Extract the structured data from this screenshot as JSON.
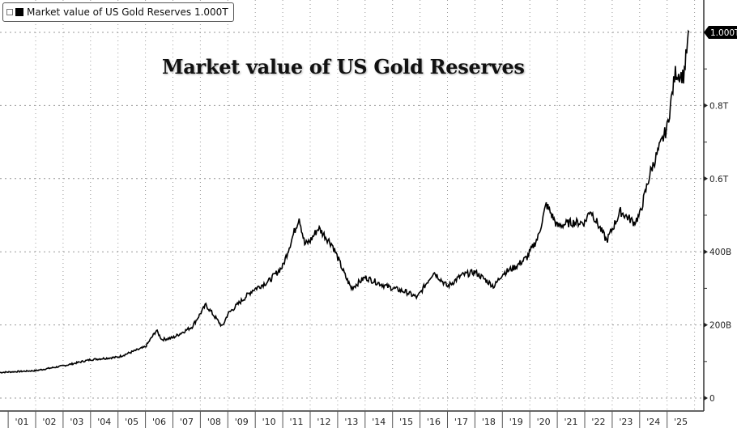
{
  "legend": {
    "label": "Market value of US Gold Reserves 1.000T"
  },
  "chart_data": {
    "type": "line",
    "title": "Market value of US Gold Reserves",
    "xlabel": "",
    "ylabel": "",
    "ylim": [
      0,
      1080
    ],
    "y_ticks": [
      {
        "value": 0,
        "label": "0"
      },
      {
        "value": 200,
        "label": "200B"
      },
      {
        "value": 400,
        "label": "400B"
      },
      {
        "value": 600,
        "label": "0.6T"
      },
      {
        "value": 800,
        "label": "0.8T"
      }
    ],
    "last_value_label": "1.000T",
    "x_tick_labels": [
      "'01",
      "'02",
      "'03",
      "'04",
      "'05",
      "'06",
      "'07",
      "'08",
      "'09",
      "'10",
      "'11",
      "'12",
      "'13",
      "'14",
      "'15",
      "'16",
      "'17",
      "'18",
      "'19",
      "'20",
      "'21",
      "'22",
      "'23",
      "'24",
      "'25"
    ],
    "grid": true,
    "y_axis_side": "right",
    "series": [
      {
        "color": "#000000",
        "x": [
          2000.7,
          2002,
          2003,
          2004,
          2005,
          2006,
          2006.4,
          2006.6,
          2007,
          2007.7,
          2008.2,
          2008.8,
          2009,
          2009.9,
          2010.5,
          2011,
          2011.6,
          2011.8,
          2012,
          2012.3,
          2012.8,
          2013.3,
          2013.5,
          2014,
          2014.8,
          2015.5,
          2015.9,
          2016.5,
          2017,
          2017.5,
          2018,
          2018.7,
          2019,
          2019.5,
          2019.9,
          2020.3,
          2020.6,
          2021,
          2021.5,
          2022,
          2022.2,
          2022.8,
          2023.3,
          2023.8,
          2024,
          2024.4,
          2024.8,
          2025,
          2025.3,
          2025.6,
          2025.8
        ],
        "y": [
          70,
          75,
          88,
          105,
          112,
          140,
          185,
          160,
          165,
          195,
          255,
          195,
          230,
          295,
          320,
          360,
          495,
          420,
          430,
          465,
          420,
          330,
          300,
          330,
          305,
          290,
          275,
          345,
          305,
          335,
          345,
          305,
          340,
          360,
          385,
          440,
          530,
          470,
          480,
          480,
          515,
          430,
          510,
          480,
          500,
          620,
          700,
          740,
          890,
          880,
          1000
        ]
      }
    ]
  }
}
